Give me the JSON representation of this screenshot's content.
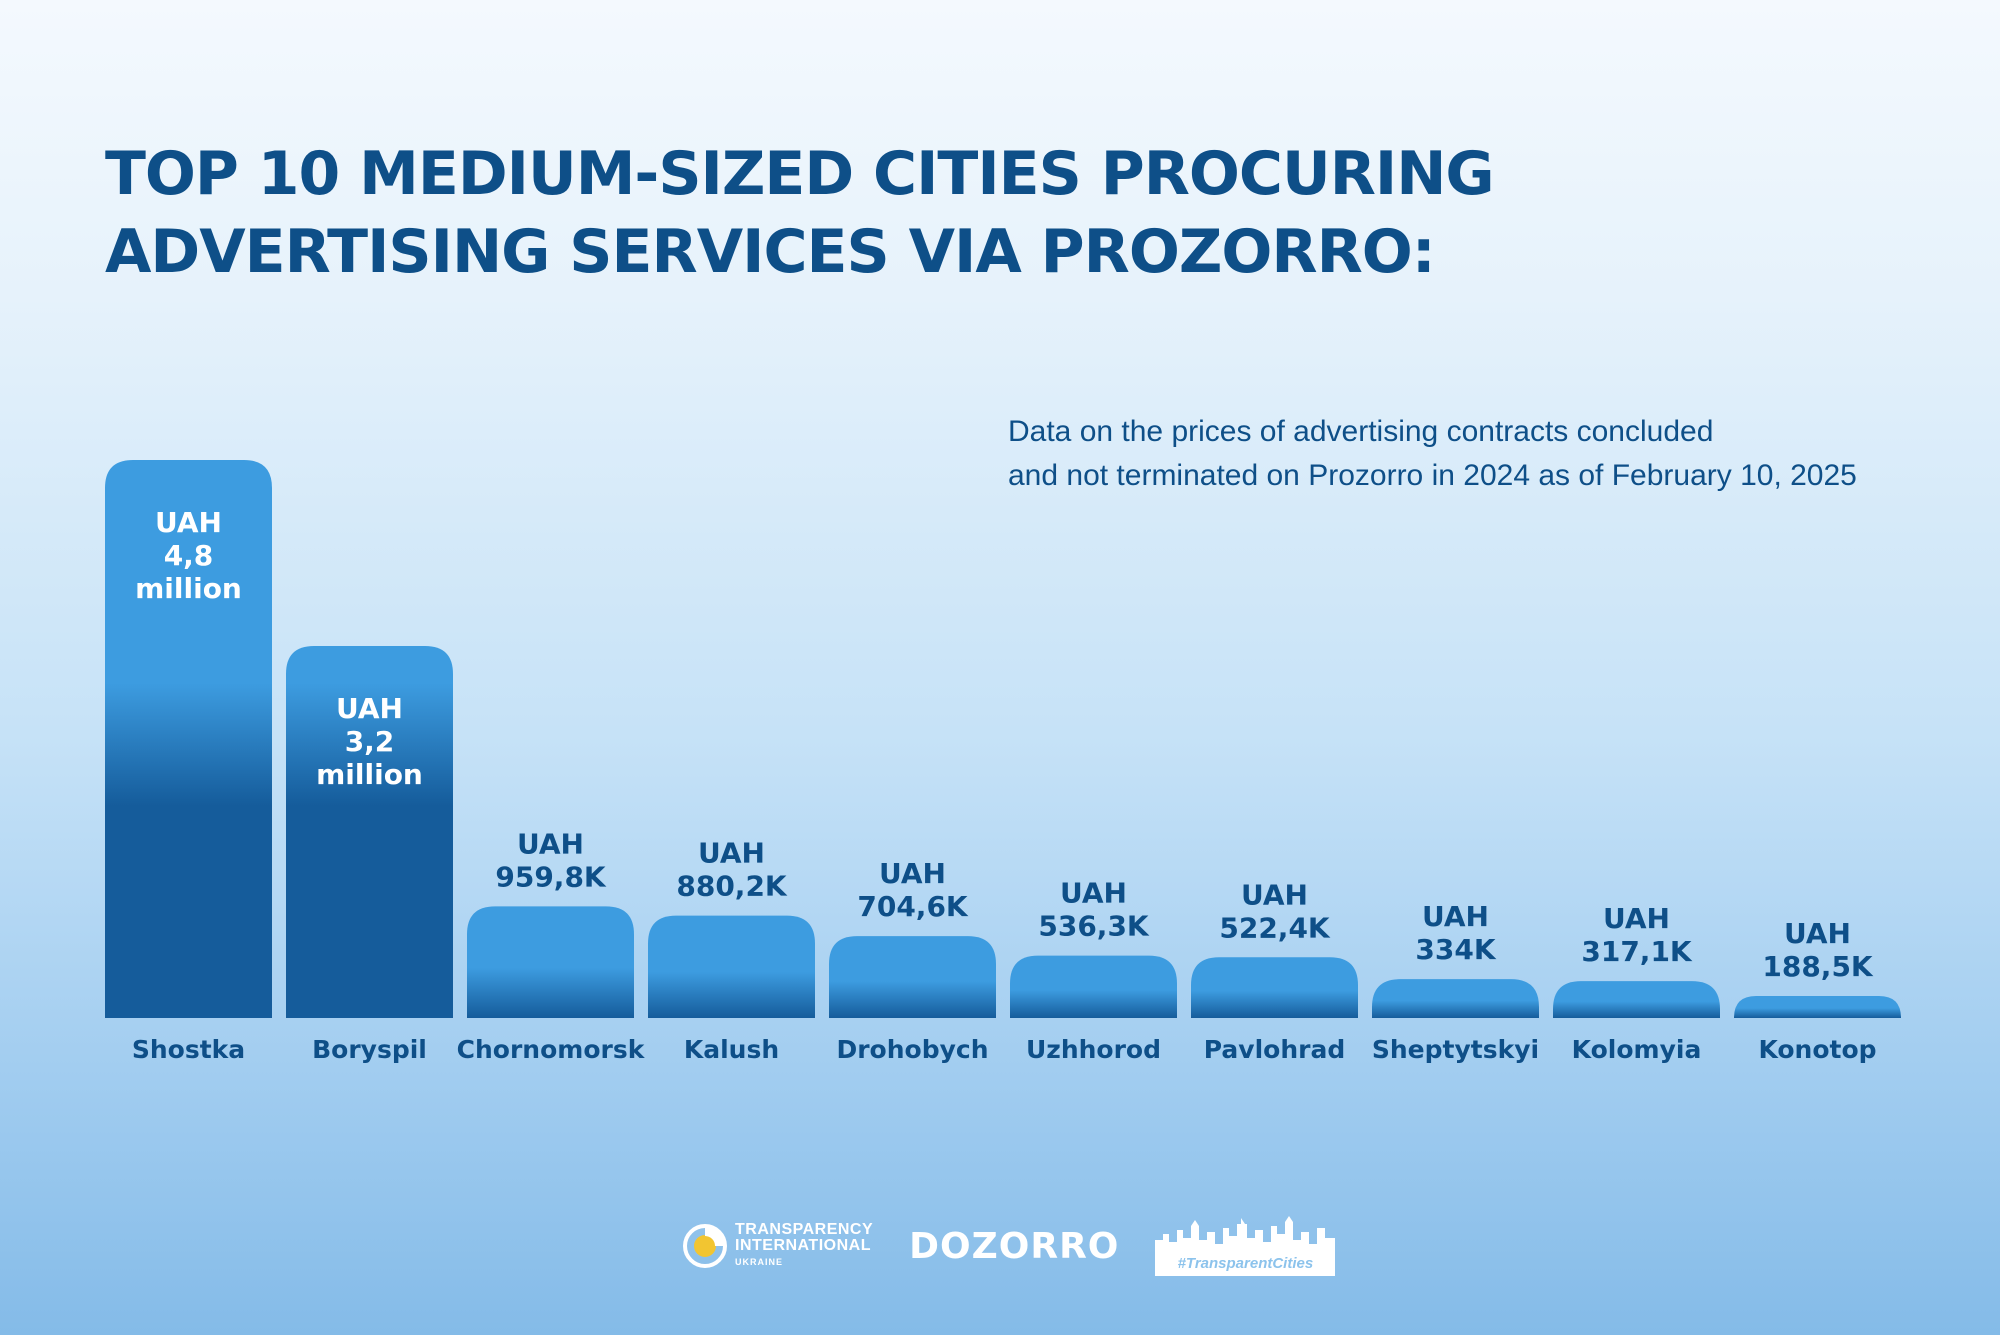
{
  "title": "TOP 10 MEDIUM-SIZED CITIES PROCURING ADVERTISING SERVICES VIA PROZORRO:",
  "note": {
    "line1": "Data on the prices of advertising contracts concluded",
    "line2": "and not terminated on Prozorro in 2024 as of February 10, 2025"
  },
  "chart_data": {
    "type": "bar",
    "title": "TOP 10 MEDIUM-SIZED CITIES PROCURING ADVERTISING SERVICES VIA PROZORRO:",
    "xlabel": "",
    "ylabel": "",
    "unit": "UAH",
    "categories": [
      "Shostka",
      "Boryspil",
      "Chornomorsk",
      "Kalush",
      "Drohobych",
      "Uzhhorod",
      "Pavlohrad",
      "Sheptytskyi",
      "Kolomyia",
      "Konotop"
    ],
    "values": [
      4800000,
      3200000,
      959800,
      880200,
      704600,
      536300,
      522400,
      334000,
      317100,
      188500
    ],
    "labels": [
      [
        "UAH",
        "4,8",
        "million"
      ],
      [
        "UAH",
        "3,2",
        "million"
      ],
      [
        "UAH",
        "959,8K"
      ],
      [
        "UAH",
        "880,2K"
      ],
      [
        "UAH",
        "704,6K"
      ],
      [
        "UAH",
        "536,3K"
      ],
      [
        "UAH",
        "522,4K"
      ],
      [
        "UAH",
        "334K"
      ],
      [
        "UAH",
        "317,1K"
      ],
      [
        "UAH",
        "188,5K"
      ]
    ],
    "grid": false,
    "legend": "none"
  },
  "colors": {
    "title": "#0e4f88",
    "bar_top": "#3d9ce0",
    "bar_bottom": "#155c9b",
    "label_inside": "#ffffff",
    "label_outside": "#0e4f88"
  },
  "logos": {
    "ti_line1": "TRANSPARENCY",
    "ti_line2": "INTERNATIONAL",
    "ti_line3": "UKRAINE",
    "dozorro": "DOZORRO",
    "transparent_cities": "#TransparentCities"
  }
}
